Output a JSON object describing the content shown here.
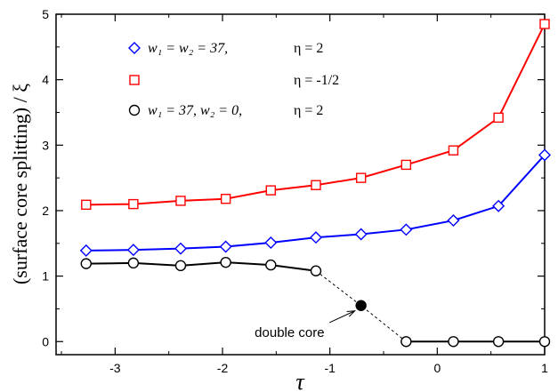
{
  "chart_data": {
    "type": "line",
    "xlabel": "τ",
    "ylabel": "(surface core splitting) / ξ",
    "xlim": [
      -3.55,
      1.0
    ],
    "ylim": [
      -0.2,
      5.0
    ],
    "xticks": [
      -3,
      -2,
      -1,
      0,
      1
    ],
    "xtick_labels": [
      "-3",
      "-2",
      "-1",
      "0",
      "1"
    ],
    "yticks": [
      0,
      1,
      2,
      3,
      4,
      5
    ],
    "ytick_labels": [
      "0",
      "1",
      "2",
      "3",
      "4",
      "5"
    ],
    "grid": false,
    "legend_position": "top-left",
    "legend": [
      {
        "marker": "diamond",
        "color": "#0000ff",
        "w_text": "w₁ = w₂ = 37,",
        "eta_text": "η = 2"
      },
      {
        "marker": "square",
        "color": "#ff0000",
        "w_text": "",
        "eta_text": "η = -1/2"
      },
      {
        "marker": "circle",
        "color": "#000000",
        "w_text": "w₁ = 37,   w₂ = 0,",
        "eta_text": "η = 2"
      }
    ],
    "series": [
      {
        "marker": "diamond",
        "color": "#0000ff",
        "x": [
          -3.27,
          -2.83,
          -2.39,
          -1.97,
          -1.55,
          -1.13,
          -0.71,
          -0.29,
          0.15,
          0.57,
          1.0
        ],
        "values": [
          1.39,
          1.4,
          1.42,
          1.45,
          1.51,
          1.59,
          1.64,
          1.71,
          1.85,
          2.07,
          2.85
        ]
      },
      {
        "marker": "square",
        "color": "#ff0000",
        "x": [
          -3.27,
          -2.83,
          -2.39,
          -1.97,
          -1.55,
          -1.13,
          -0.71,
          -0.29,
          0.15,
          0.57,
          1.0
        ],
        "values": [
          2.09,
          2.1,
          2.15,
          2.18,
          2.31,
          2.39,
          2.5,
          2.7,
          2.92,
          3.42,
          4.85
        ]
      },
      {
        "marker": "circle",
        "color": "#000000",
        "x": [
          -3.27,
          -2.83,
          -2.39,
          -1.97,
          -1.55,
          -1.13
        ],
        "values": [
          1.19,
          1.2,
          1.16,
          1.21,
          1.17,
          1.08
        ]
      },
      {
        "marker": "circle",
        "color": "#000000",
        "x": [
          -0.29,
          0.15,
          0.57,
          1.0
        ],
        "values": [
          0.0,
          0.0,
          0.0,
          0.0
        ]
      }
    ],
    "dashed_link": {
      "x": [
        -1.13,
        -0.71,
        -0.29
      ],
      "values": [
        1.08,
        0.55,
        0.0
      ]
    },
    "double_core_point": {
      "x": -0.71,
      "y": 0.55
    },
    "annotation": {
      "text": "double core",
      "x": -1.75,
      "y": 0.1
    }
  }
}
